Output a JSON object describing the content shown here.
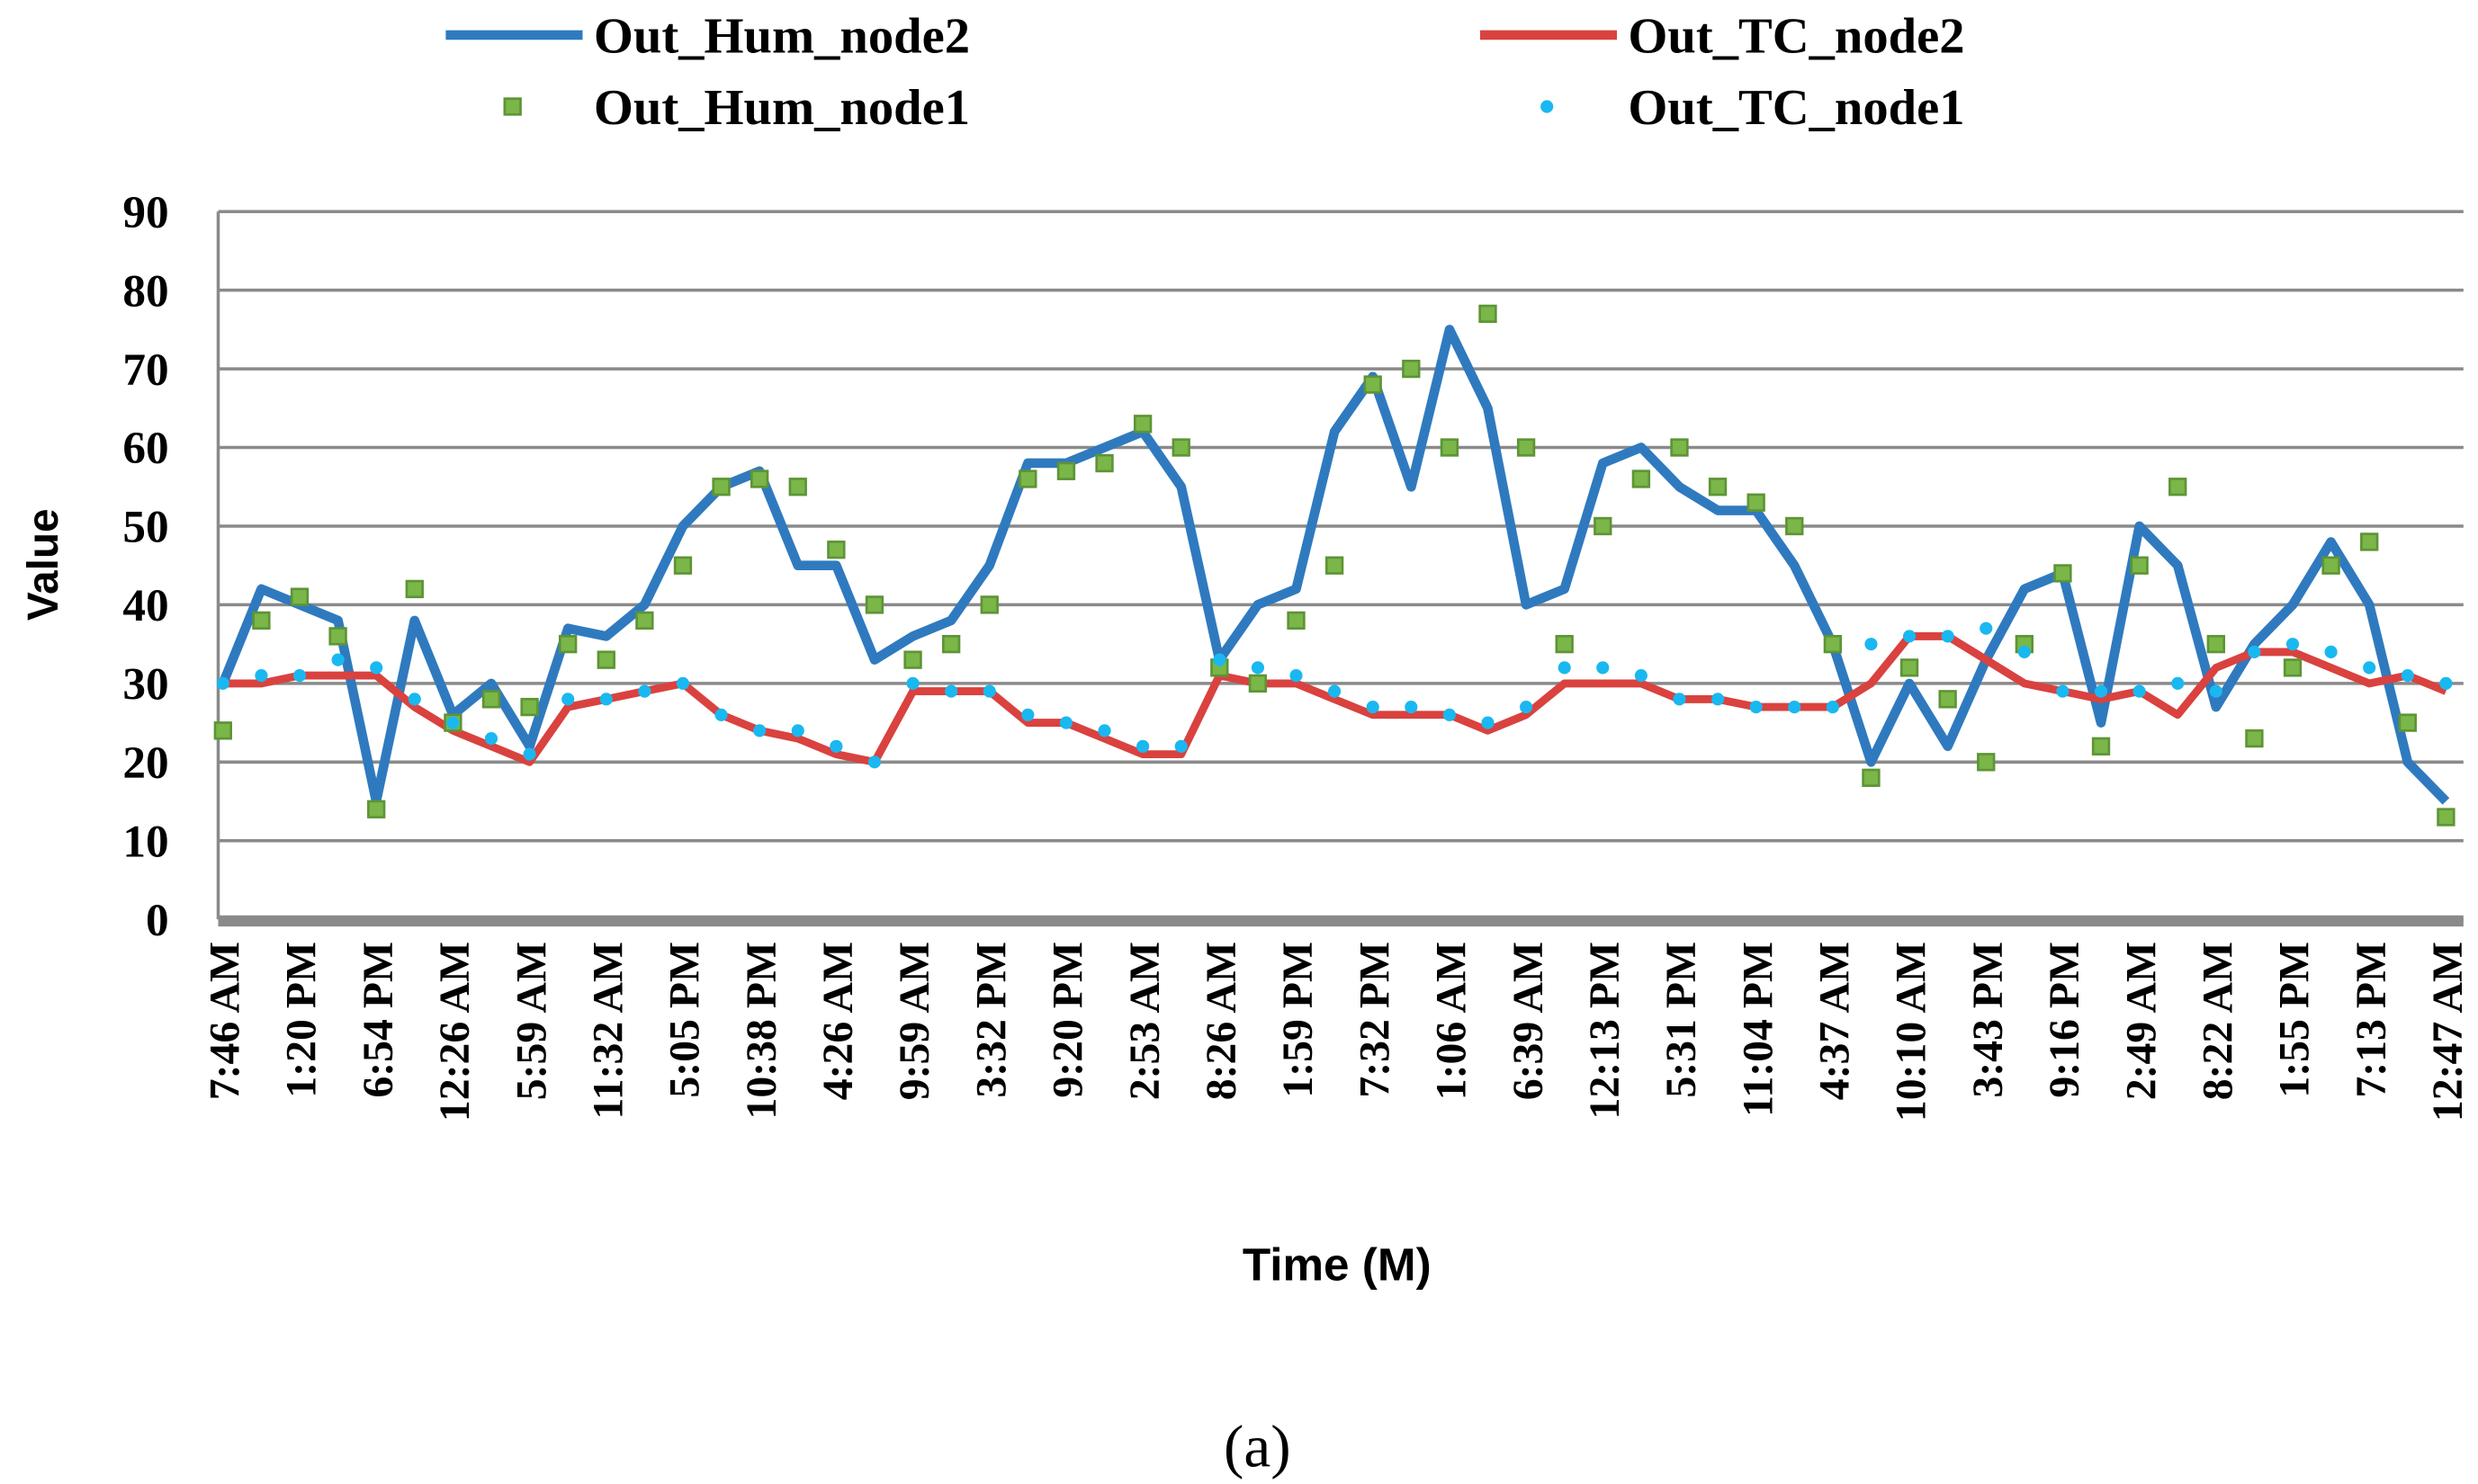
{
  "chart_data": {
    "type": "line",
    "y_label": "Value",
    "x_label": "Time (M)",
    "caption": "(a)",
    "categories": [
      "7:46 AM",
      null,
      "1:20 PM",
      null,
      "6:54 PM",
      null,
      "12:26 AM",
      null,
      "5:59 AM",
      null,
      "11:32 AM",
      null,
      "5:05 PM",
      null,
      "10:38 PM",
      null,
      "4:26 AM",
      null,
      "9:59 AM",
      null,
      "3:32 PM",
      null,
      "9:20 PM",
      null,
      "2:53 AM",
      null,
      "8:26 AM",
      null,
      "1:59 PM",
      null,
      "7:32 PM",
      null,
      "1:06 AM",
      null,
      "6:39 AM",
      null,
      "12:13 PM",
      null,
      "5:31 PM",
      null,
      "11:04 PM",
      null,
      "4:37 AM",
      null,
      "10:10 AM",
      null,
      "3:43 PM",
      null,
      "9:16 PM",
      null,
      "2:49 AM",
      null,
      "8:22 AM",
      null,
      "1:55 PM",
      null,
      "7:13 PM",
      null,
      "12:47 AM"
    ],
    "series": [
      {
        "name": "Out_Hum_node2",
        "color": "#2f7abf",
        "style": "line",
        "values": [
          30,
          42,
          40,
          38,
          15,
          38,
          26,
          30,
          22,
          37,
          36,
          40,
          50,
          55,
          57,
          45,
          45,
          33,
          36,
          38,
          45,
          58,
          58,
          60,
          62,
          55,
          33,
          40,
          42,
          62,
          69,
          55,
          75,
          65,
          40,
          42,
          58,
          60,
          55,
          52,
          52,
          45,
          35,
          20,
          30,
          22,
          33,
          42,
          44,
          25,
          50,
          45,
          27,
          35,
          40,
          48,
          40,
          20,
          15
        ]
      },
      {
        "name": "Out_TC_node2",
        "color": "#d9423f",
        "style": "line",
        "values": [
          30,
          30,
          31,
          31,
          31,
          27,
          24,
          22,
          20,
          27,
          28,
          29,
          30,
          26,
          24,
          23,
          21,
          20,
          29,
          29,
          29,
          25,
          25,
          23,
          21,
          21,
          31,
          30,
          30,
          28,
          26,
          26,
          26,
          24,
          26,
          30,
          30,
          30,
          28,
          28,
          27,
          27,
          27,
          30,
          36,
          36,
          33,
          30,
          29,
          28,
          29,
          26,
          32,
          34,
          34,
          32,
          30,
          31,
          29
        ]
      },
      {
        "name": "Out_Hum_node1",
        "color": "#7ab648",
        "style": "square",
        "values": [
          24,
          38,
          41,
          36,
          14,
          42,
          25,
          28,
          27,
          35,
          33,
          38,
          45,
          55,
          56,
          55,
          47,
          40,
          33,
          35,
          40,
          56,
          57,
          58,
          63,
          60,
          32,
          30,
          38,
          45,
          68,
          70,
          60,
          77,
          60,
          35,
          50,
          56,
          60,
          55,
          53,
          50,
          35,
          18,
          32,
          28,
          20,
          35,
          44,
          22,
          45,
          55,
          35,
          23,
          32,
          45,
          48,
          25,
          13
        ]
      },
      {
        "name": "Out_TC_node1",
        "color": "#1ab8f0",
        "style": "dot",
        "values": [
          30,
          31,
          31,
          33,
          32,
          28,
          25,
          23,
          21,
          28,
          28,
          29,
          30,
          26,
          24,
          24,
          22,
          20,
          30,
          29,
          29,
          26,
          25,
          24,
          22,
          22,
          33,
          32,
          31,
          29,
          27,
          27,
          26,
          25,
          27,
          32,
          32,
          31,
          28,
          28,
          27,
          27,
          27,
          35,
          36,
          36,
          37,
          34,
          29,
          29,
          29,
          30,
          29,
          34,
          35,
          34,
          32,
          31,
          30
        ]
      }
    ],
    "ylim": [
      0,
      90
    ],
    "yticks": [
      0,
      10,
      20,
      30,
      40,
      50,
      60,
      70,
      80,
      90
    ],
    "grid": true,
    "legend": "top"
  }
}
